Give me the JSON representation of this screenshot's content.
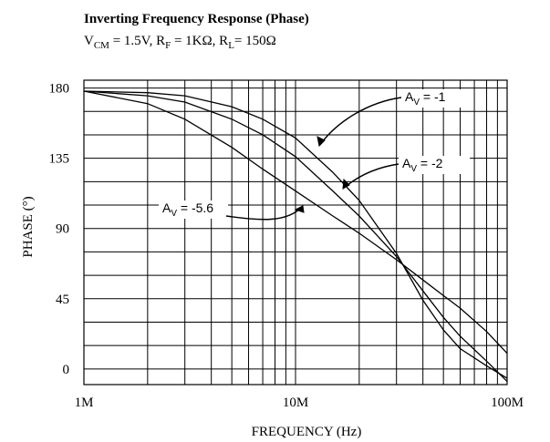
{
  "chart_data": {
    "type": "line",
    "title": "Inverting Frequency Response (Phase)",
    "subtitle": {
      "vcm_prefix": "V",
      "vcm_sub": "CM",
      "vcm_value": " = 1.5V, ",
      "rf_prefix": "R",
      "rf_sub": "F",
      "rf_value": " = 1KΩ, ",
      "rl_prefix": "R",
      "rl_sub": "L",
      "rl_value": "= 150Ω"
    },
    "xlabel": "FREQUENCY (Hz)",
    "ylabel": "PHASE (°)",
    "x_scale": "log",
    "xlim": [
      1000000,
      100000000
    ],
    "ylim": [
      -10,
      185
    ],
    "x_ticks": [
      {
        "value": 1000000,
        "label": "1M"
      },
      {
        "value": 10000000,
        "label": "10M"
      },
      {
        "value": 100000000,
        "label": "100M"
      }
    ],
    "y_ticks": [
      {
        "value": 0,
        "label": "0"
      },
      {
        "value": 45,
        "label": "45"
      },
      {
        "value": 90,
        "label": "90"
      },
      {
        "value": 135,
        "label": "135"
      },
      {
        "value": 180,
        "label": "180"
      }
    ],
    "grid": true,
    "series": [
      {
        "name": "AV = -1",
        "label_main": "A",
        "label_sub": "V",
        "label_rest": " = -1",
        "x": [
          1000000,
          2000000,
          3000000,
          5000000,
          7000000,
          10000000,
          15000000,
          20000000,
          30000000,
          40000000,
          50000000,
          60000000,
          80000000,
          100000000
        ],
        "y": [
          178,
          177,
          175,
          168,
          160,
          148,
          126,
          108,
          74,
          44,
          25,
          13,
          2,
          -6
        ]
      },
      {
        "name": "AV = -2",
        "label_main": "A",
        "label_sub": "V",
        "label_rest": " = -2",
        "x": [
          1000000,
          2000000,
          3000000,
          5000000,
          7000000,
          10000000,
          15000000,
          20000000,
          30000000,
          40000000,
          50000000,
          60000000,
          80000000,
          100000000
        ],
        "y": [
          178,
          175,
          171,
          160,
          150,
          136,
          114,
          98,
          72,
          50,
          33,
          21,
          5,
          -8
        ]
      },
      {
        "name": "AV = -5.6",
        "label_main": "A",
        "label_sub": "V",
        "label_rest": " = -5.6",
        "x": [
          1000000,
          2000000,
          3000000,
          5000000,
          7000000,
          10000000,
          15000000,
          20000000,
          30000000,
          40000000,
          50000000,
          60000000,
          80000000,
          100000000
        ],
        "y": [
          178,
          170,
          160,
          142,
          128,
          114,
          98,
          87,
          70,
          57,
          47,
          39,
          24,
          10
        ]
      }
    ]
  }
}
